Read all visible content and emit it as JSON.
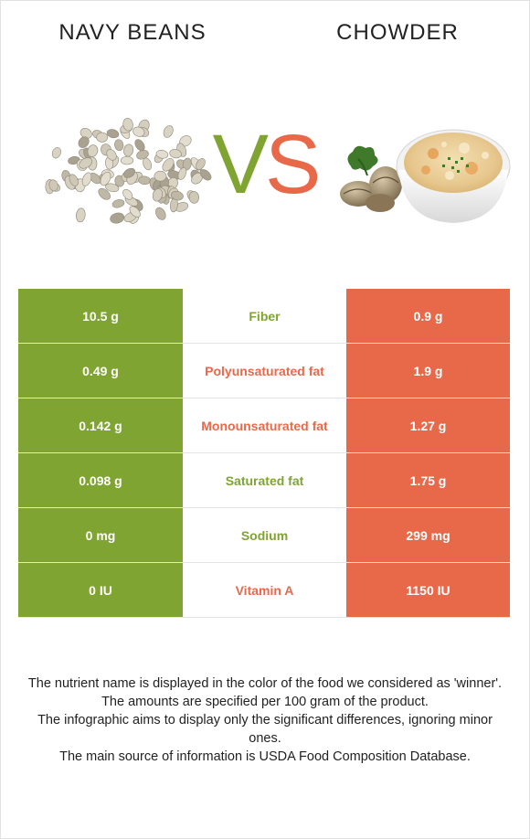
{
  "header": {
    "left_food": "NAVY BEANS",
    "right_food": "CHOWDER",
    "vs_v": "V",
    "vs_s": "S"
  },
  "colors": {
    "left_food": "#7fa432",
    "right_food": "#e8694a"
  },
  "images": {
    "left": "navy-beans-pile",
    "right": "chowder-bowl-with-clams"
  },
  "rows": [
    {
      "left": "10.5 g",
      "nutrient": "Fiber",
      "right": "0.9 g",
      "winner": "left"
    },
    {
      "left": "0.49 g",
      "nutrient": "Polyunsaturated fat",
      "right": "1.9 g",
      "winner": "right"
    },
    {
      "left": "0.142 g",
      "nutrient": "Monounsaturated fat",
      "right": "1.27 g",
      "winner": "right"
    },
    {
      "left": "0.098 g",
      "nutrient": "Saturated fat",
      "right": "1.75 g",
      "winner": "left"
    },
    {
      "left": "0 mg",
      "nutrient": "Sodium",
      "right": "299 mg",
      "winner": "left"
    },
    {
      "left": "0 IU",
      "nutrient": "Vitamin A",
      "right": "1150 IU",
      "winner": "right"
    }
  ],
  "footnote": [
    "The nutrient name is displayed in the color of the food we considered as 'winner'.",
    "The amounts are specified per 100 gram of the product.",
    "The infographic aims to display only the significant differences, ignoring minor ones.",
    "The main source of information is USDA Food Composition Database."
  ]
}
